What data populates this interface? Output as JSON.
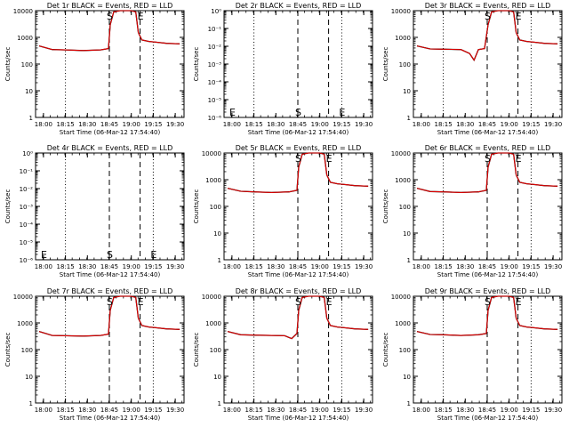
{
  "figure": {
    "background": "#ffffff",
    "event_color": "#000000",
    "lld_color": "#e00000"
  },
  "chart_data": [
    {
      "type": "line",
      "title": "Det 1r BLACK = Events, RED = LLD",
      "ylabel": "Counts/sec",
      "xlabel": "Start Time (06-Mar-12 17:54:40)",
      "scale": "log",
      "y_ticks": [
        "1",
        "10",
        "100",
        "1000",
        "10000"
      ],
      "ylim": [
        1,
        10000
      ],
      "x_ticks": [
        "18:00",
        "18:15",
        "18:30",
        "18:45",
        "19:00",
        "19:15",
        "19:30"
      ],
      "xlim": [
        17.91,
        19.6
      ],
      "dotted_lines": [
        18.25,
        19.25
      ],
      "dashed_lines": [
        18.75,
        19.1
      ],
      "markers": [
        {
          "label": "S",
          "x": 18.75
        },
        {
          "label": "E",
          "x": 19.1
        }
      ],
      "series": [
        {
          "name": "Events",
          "x": [
            17.95,
            18.1,
            18.25,
            18.45,
            18.65,
            18.74,
            18.76,
            18.8,
            18.87,
            18.95,
            19.0,
            19.05,
            19.08,
            19.12,
            19.2,
            19.3,
            19.4,
            19.5,
            19.55
          ],
          "y": [
            480,
            350,
            340,
            320,
            340,
            380,
            3000,
            9000,
            10000,
            10000,
            10000,
            9000,
            1500,
            800,
            700,
            650,
            600,
            580,
            570
          ]
        },
        {
          "name": "LLD",
          "x": [
            17.95,
            18.1,
            18.25,
            18.45,
            18.65,
            18.74,
            18.76,
            18.8,
            18.87,
            18.95,
            19.0,
            19.05,
            19.08,
            19.12,
            19.2,
            19.3,
            19.4,
            19.5,
            19.55
          ],
          "y": [
            480,
            350,
            340,
            320,
            340,
            380,
            3000,
            9000,
            10000,
            10000,
            10000,
            9000,
            1500,
            800,
            700,
            650,
            600,
            580,
            570
          ]
        }
      ]
    },
    {
      "type": "line",
      "title": "Det 2r BLACK = Events, RED = LLD",
      "ylabel": "Counts/sec",
      "xlabel": "Start Time (06-Mar-12 17:54:40)",
      "scale": "log",
      "y_ticks": [
        "10⁻⁶",
        "10⁻⁵",
        "10⁻⁴",
        "10⁻³",
        "10⁻²",
        "10⁻¹",
        "10⁰"
      ],
      "ylim": [
        1e-06,
        1
      ],
      "x_ticks": [
        "18:00",
        "18:15",
        "18:30",
        "18:45",
        "19:00",
        "19:15",
        "19:30"
      ],
      "xlim": [
        17.91,
        19.6
      ],
      "dotted_lines": [
        18.25,
        19.25
      ],
      "dashed_lines": [
        18.75,
        19.1
      ],
      "markers": [
        {
          "label": "E",
          "x": 17.95
        },
        {
          "label": "S",
          "x": 18.75
        },
        {
          "label": "E",
          "x": 19.25
        }
      ],
      "series": []
    },
    {
      "type": "line",
      "title": "Det 3r BLACK = Events, RED = LLD",
      "ylabel": "Counts/sec",
      "xlabel": "Start Time (06-Mar-12 17:54:40)",
      "scale": "log",
      "y_ticks": [
        "1",
        "10",
        "100",
        "1000",
        "10000"
      ],
      "ylim": [
        1,
        10000
      ],
      "x_ticks": [
        "18:00",
        "18:15",
        "18:30",
        "18:45",
        "19:00",
        "19:15",
        "19:30"
      ],
      "xlim": [
        17.91,
        19.6
      ],
      "dotted_lines": [
        18.25,
        19.25
      ],
      "dashed_lines": [
        18.75,
        19.1
      ],
      "markers": [
        {
          "label": "S",
          "x": 18.75
        },
        {
          "label": "E",
          "x": 19.1
        }
      ],
      "series": [
        {
          "name": "Events",
          "x": [
            17.95,
            18.1,
            18.25,
            18.45,
            18.55,
            18.6,
            18.65,
            18.72,
            18.76,
            18.8,
            18.87,
            18.95,
            19.0,
            19.05,
            19.08,
            19.12,
            19.2,
            19.3,
            19.4,
            19.5,
            19.55
          ],
          "y": [
            480,
            370,
            360,
            350,
            250,
            140,
            350,
            380,
            3000,
            9000,
            10000,
            10000,
            10000,
            9000,
            1500,
            800,
            700,
            650,
            600,
            580,
            570
          ]
        },
        {
          "name": "LLD",
          "x": [
            17.95,
            18.1,
            18.25,
            18.45,
            18.55,
            18.6,
            18.65,
            18.72,
            18.76,
            18.8,
            18.87,
            18.95,
            19.0,
            19.05,
            19.08,
            19.12,
            19.2,
            19.3,
            19.4,
            19.5,
            19.55
          ],
          "y": [
            480,
            370,
            360,
            350,
            250,
            140,
            350,
            380,
            3000,
            9000,
            10000,
            10000,
            10000,
            9000,
            1500,
            800,
            700,
            650,
            600,
            580,
            570
          ]
        }
      ]
    },
    {
      "type": "line",
      "title": "Det 4r BLACK = Events, RED = LLD",
      "ylabel": "Counts/sec",
      "xlabel": "Start Time (06-Mar-12 17:54:40)",
      "scale": "log",
      "y_ticks": [
        "10⁻⁶",
        "10⁻⁵",
        "10⁻⁴",
        "10⁻³",
        "10⁻²",
        "10⁻¹",
        "10⁰"
      ],
      "ylim": [
        1e-06,
        1
      ],
      "x_ticks": [
        "18:00",
        "18:15",
        "18:30",
        "18:45",
        "19:00",
        "19:15",
        "19:30"
      ],
      "xlim": [
        17.91,
        19.6
      ],
      "dotted_lines": [
        18.25,
        19.25
      ],
      "dashed_lines": [
        18.75,
        19.1
      ],
      "markers": [
        {
          "label": "E",
          "x": 17.95
        },
        {
          "label": "S",
          "x": 18.75
        },
        {
          "label": "E",
          "x": 19.25
        }
      ],
      "series": []
    },
    {
      "type": "line",
      "title": "Det 5r BLACK = Events, RED = LLD",
      "ylabel": "Counts/sec",
      "xlabel": "Start Time (06-Mar-12 17:54:40)",
      "scale": "log",
      "y_ticks": [
        "1",
        "10",
        "100",
        "1000",
        "10000"
      ],
      "ylim": [
        1,
        10000
      ],
      "x_ticks": [
        "18:00",
        "18:15",
        "18:30",
        "18:45",
        "19:00",
        "19:15",
        "19:30"
      ],
      "xlim": [
        17.91,
        19.6
      ],
      "dotted_lines": [
        18.25,
        19.25
      ],
      "dashed_lines": [
        18.75,
        19.1
      ],
      "markers": [
        {
          "label": "S",
          "x": 18.75
        },
        {
          "label": "E",
          "x": 19.1
        }
      ],
      "series": [
        {
          "name": "Events",
          "x": [
            17.95,
            18.1,
            18.25,
            18.45,
            18.65,
            18.74,
            18.76,
            18.8,
            18.87,
            18.95,
            19.0,
            19.05,
            19.08,
            19.12,
            19.2,
            19.3,
            19.4,
            19.5,
            19.55
          ],
          "y": [
            480,
            370,
            350,
            330,
            350,
            400,
            3000,
            9000,
            10000,
            10000,
            10000,
            9000,
            1500,
            800,
            700,
            650,
            600,
            580,
            570
          ]
        },
        {
          "name": "LLD",
          "x": [
            17.95,
            18.1,
            18.25,
            18.45,
            18.65,
            18.74,
            18.76,
            18.8,
            18.87,
            18.95,
            19.0,
            19.05,
            19.08,
            19.12,
            19.2,
            19.3,
            19.4,
            19.5,
            19.55
          ],
          "y": [
            480,
            370,
            350,
            330,
            350,
            400,
            3000,
            9000,
            10000,
            10000,
            10000,
            9000,
            1500,
            800,
            700,
            650,
            600,
            580,
            570
          ]
        }
      ]
    },
    {
      "type": "line",
      "title": "Det 6r BLACK = Events, RED = LLD",
      "ylabel": "Counts/sec",
      "xlabel": "Start Time (06-Mar-12 17:54:40)",
      "scale": "log",
      "y_ticks": [
        "1",
        "10",
        "100",
        "1000",
        "10000"
      ],
      "ylim": [
        1,
        10000
      ],
      "x_ticks": [
        "18:00",
        "18:15",
        "18:30",
        "18:45",
        "19:00",
        "19:15",
        "19:30"
      ],
      "xlim": [
        17.91,
        19.6
      ],
      "dotted_lines": [
        18.25,
        19.25
      ],
      "dashed_lines": [
        18.75,
        19.1
      ],
      "markers": [
        {
          "label": "S",
          "x": 18.75
        },
        {
          "label": "E",
          "x": 19.1
        }
      ],
      "series": [
        {
          "name": "Events",
          "x": [
            17.95,
            18.1,
            18.25,
            18.45,
            18.65,
            18.74,
            18.76,
            18.8,
            18.87,
            18.95,
            19.0,
            19.05,
            19.08,
            19.12,
            19.2,
            19.3,
            19.4,
            19.5,
            19.55
          ],
          "y": [
            480,
            360,
            350,
            330,
            350,
            400,
            3000,
            9000,
            10000,
            10000,
            10000,
            9000,
            1500,
            800,
            700,
            650,
            600,
            580,
            570
          ]
        },
        {
          "name": "LLD",
          "x": [
            17.95,
            18.1,
            18.25,
            18.45,
            18.65,
            18.74,
            18.76,
            18.8,
            18.87,
            18.95,
            19.0,
            19.05,
            19.08,
            19.12,
            19.2,
            19.3,
            19.4,
            19.5,
            19.55
          ],
          "y": [
            480,
            360,
            350,
            330,
            350,
            400,
            3000,
            9000,
            10000,
            10000,
            10000,
            9000,
            1500,
            800,
            700,
            650,
            600,
            580,
            570
          ]
        }
      ]
    },
    {
      "type": "line",
      "title": "Det 7r BLACK = Events, RED = LLD",
      "ylabel": "Counts/sec",
      "xlabel": "Start Time (06-Mar-12 17:54:40)",
      "scale": "log",
      "y_ticks": [
        "1",
        "10",
        "100",
        "1000",
        "10000"
      ],
      "ylim": [
        1,
        10000
      ],
      "x_ticks": [
        "18:00",
        "18:15",
        "18:30",
        "18:45",
        "19:00",
        "19:15",
        "19:30"
      ],
      "xlim": [
        17.91,
        19.6
      ],
      "dotted_lines": [
        18.25,
        19.25
      ],
      "dashed_lines": [
        18.75,
        19.1
      ],
      "markers": [
        {
          "label": "S",
          "x": 18.75
        },
        {
          "label": "E",
          "x": 19.1
        }
      ],
      "series": [
        {
          "name": "Events",
          "x": [
            17.95,
            18.1,
            18.25,
            18.45,
            18.65,
            18.74,
            18.76,
            18.8,
            18.87,
            18.95,
            19.0,
            19.05,
            19.08,
            19.12,
            19.2,
            19.3,
            19.4,
            19.5,
            19.55
          ],
          "y": [
            480,
            340,
            330,
            320,
            340,
            380,
            3000,
            9000,
            10000,
            10000,
            10000,
            9000,
            1500,
            800,
            700,
            650,
            600,
            580,
            570
          ]
        },
        {
          "name": "LLD",
          "x": [
            17.95,
            18.1,
            18.25,
            18.45,
            18.65,
            18.74,
            18.76,
            18.8,
            18.87,
            18.95,
            19.0,
            19.05,
            19.08,
            19.12,
            19.2,
            19.3,
            19.4,
            19.5,
            19.55
          ],
          "y": [
            480,
            340,
            330,
            320,
            340,
            380,
            3000,
            9000,
            10000,
            10000,
            10000,
            9000,
            1500,
            800,
            700,
            650,
            600,
            580,
            570
          ]
        }
      ]
    },
    {
      "type": "line",
      "title": "Det 8r BLACK = Events, RED = LLD",
      "ylabel": "Counts/sec",
      "xlabel": "Start Time (06-Mar-12 17:54:40)",
      "scale": "log",
      "y_ticks": [
        "1",
        "10",
        "100",
        "1000",
        "10000"
      ],
      "ylim": [
        1,
        10000
      ],
      "x_ticks": [
        "18:00",
        "18:15",
        "18:30",
        "18:45",
        "19:00",
        "19:15",
        "19:30"
      ],
      "xlim": [
        17.91,
        19.6
      ],
      "dotted_lines": [
        18.25,
        19.25
      ],
      "dashed_lines": [
        18.75,
        19.1
      ],
      "markers": [
        {
          "label": "S",
          "x": 18.75
        },
        {
          "label": "E",
          "x": 19.1
        }
      ],
      "series": [
        {
          "name": "Events",
          "x": [
            17.95,
            18.1,
            18.25,
            18.45,
            18.6,
            18.68,
            18.74,
            18.76,
            18.8,
            18.87,
            18.95,
            19.0,
            19.05,
            19.08,
            19.12,
            19.2,
            19.3,
            19.4,
            19.5,
            19.55
          ],
          "y": [
            480,
            360,
            350,
            340,
            330,
            260,
            400,
            3000,
            9000,
            10000,
            10000,
            10000,
            9000,
            1500,
            800,
            700,
            650,
            600,
            580,
            570
          ]
        },
        {
          "name": "LLD",
          "x": [
            17.95,
            18.1,
            18.25,
            18.45,
            18.6,
            18.68,
            18.74,
            18.76,
            18.8,
            18.87,
            18.95,
            19.0,
            19.05,
            19.08,
            19.12,
            19.2,
            19.3,
            19.4,
            19.5,
            19.55
          ],
          "y": [
            480,
            360,
            350,
            340,
            330,
            260,
            400,
            3000,
            9000,
            10000,
            10000,
            10000,
            9000,
            1500,
            800,
            700,
            650,
            600,
            580,
            570
          ]
        }
      ]
    },
    {
      "type": "line",
      "title": "Det 9r BLACK = Events, RED = LLD",
      "ylabel": "Counts/sec",
      "xlabel": "Start Time (06-Mar-12 17:54:40)",
      "scale": "log",
      "y_ticks": [
        "1",
        "10",
        "100",
        "1000",
        "10000"
      ],
      "ylim": [
        1,
        10000
      ],
      "x_ticks": [
        "18:00",
        "18:15",
        "18:30",
        "18:45",
        "19:00",
        "19:15",
        "19:30"
      ],
      "xlim": [
        17.91,
        19.6
      ],
      "dotted_lines": [
        18.25,
        19.25
      ],
      "dashed_lines": [
        18.75,
        19.1
      ],
      "markers": [
        {
          "label": "S",
          "x": 18.75
        },
        {
          "label": "E",
          "x": 19.1
        }
      ],
      "series": [
        {
          "name": "Events",
          "x": [
            17.95,
            18.1,
            18.25,
            18.45,
            18.65,
            18.74,
            18.76,
            18.8,
            18.87,
            18.95,
            19.0,
            19.05,
            19.08,
            19.12,
            19.2,
            19.3,
            19.4,
            19.5,
            19.55
          ],
          "y": [
            480,
            370,
            360,
            340,
            360,
            400,
            3000,
            9000,
            10000,
            10000,
            10000,
            9000,
            1500,
            800,
            700,
            650,
            600,
            580,
            570
          ]
        },
        {
          "name": "LLD",
          "x": [
            17.95,
            18.1,
            18.25,
            18.45,
            18.65,
            18.74,
            18.76,
            18.8,
            18.87,
            18.95,
            19.0,
            19.05,
            19.08,
            19.12,
            19.2,
            19.3,
            19.4,
            19.5,
            19.55
          ],
          "y": [
            480,
            370,
            360,
            340,
            360,
            400,
            3000,
            9000,
            10000,
            10000,
            10000,
            9000,
            1500,
            800,
            700,
            650,
            600,
            580,
            570
          ]
        }
      ]
    }
  ]
}
